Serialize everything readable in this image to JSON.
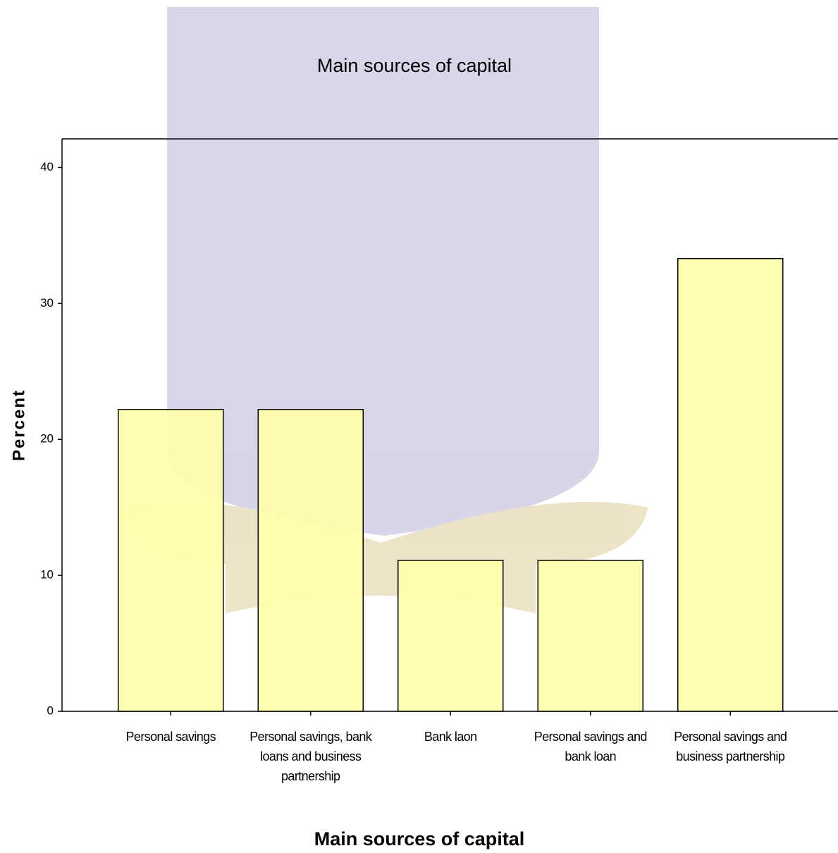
{
  "chart_data": {
    "type": "bar",
    "title": "Main sources of capital",
    "x_label": "Main sources of capital",
    "y_label": "Percent",
    "categories": [
      "Personal savings",
      "Personal savings, bank loans and business partnership",
      "Bank laon",
      "Personal savings and bank loan",
      "Personal savings and business partnership"
    ],
    "values": [
      22.2,
      22.2,
      11.1,
      11.1,
      33.3
    ],
    "color": "#ffffa8",
    "ylim": [
      0,
      42.1
    ],
    "yticks": [
      0,
      10,
      20,
      30,
      40
    ],
    "grid": false
  }
}
